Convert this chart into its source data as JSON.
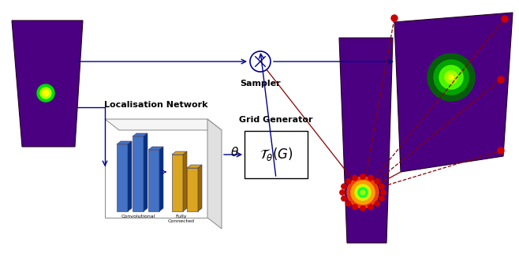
{
  "bg_color": "#ffffff",
  "panel_color": "#4B0082",
  "bar_blue": "#4472C4",
  "bar_yellow": "#DAA520",
  "arrow_color": "#00008B",
  "red_dot_color": "#cc0000",
  "red_line_color": "#8B0000",
  "localisation_label": "Localisation Network",
  "grid_gen_label": "Grid Generator",
  "theta_label": "$\\theta$",
  "sampler_label": "Sampler",
  "conv_label": "Convolutional",
  "fc_label": "Fully\nConnected",
  "transform_label": "$\\mathcal{T}_{\\theta}(G)$"
}
